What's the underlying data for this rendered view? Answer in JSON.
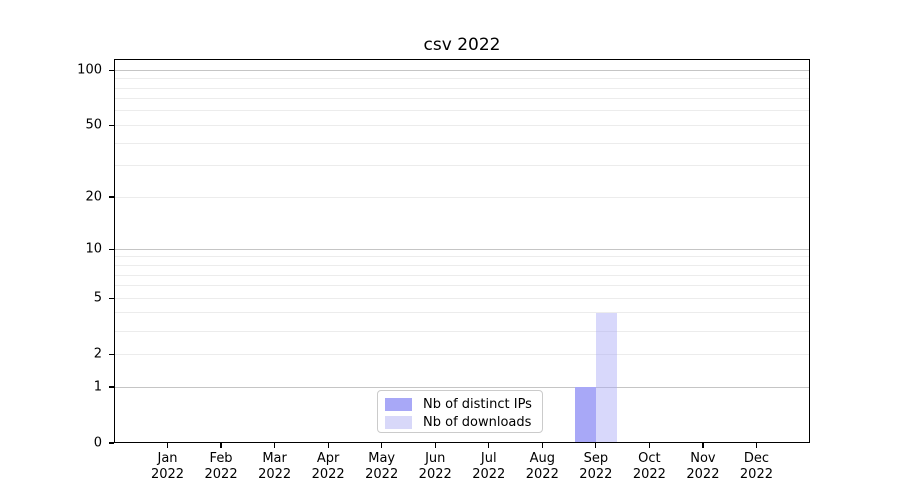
{
  "chart_data": {
    "type": "bar",
    "title": "csv 2022",
    "categories": [
      "Jan 2022",
      "Feb 2022",
      "Mar 2022",
      "Apr 2022",
      "May 2022",
      "Jun 2022",
      "Jul 2022",
      "Aug 2022",
      "Sep 2022",
      "Oct 2022",
      "Nov 2022",
      "Dec 2022"
    ],
    "x_tick_line1": [
      "Jan",
      "Feb",
      "Mar",
      "Apr",
      "May",
      "Jun",
      "Jul",
      "Aug",
      "Sep",
      "Oct",
      "Nov",
      "Dec"
    ],
    "x_tick_line2": [
      "2022",
      "2022",
      "2022",
      "2022",
      "2022",
      "2022",
      "2022",
      "2022",
      "2022",
      "2022",
      "2022",
      "2022"
    ],
    "series": [
      {
        "name": "Nb of distinct IPs",
        "color": "#a8a8f7",
        "alpha": 1,
        "values": [
          0,
          0,
          0,
          0,
          0,
          0,
          0,
          0,
          1,
          0,
          0,
          0
        ]
      },
      {
        "name": "Nb of downloads",
        "color": "#d8d8f9",
        "base_color": "#a8a8f7",
        "alpha": 0.45,
        "values": [
          0,
          0,
          0,
          0,
          0,
          0,
          0,
          0,
          4,
          0,
          0,
          0
        ]
      }
    ],
    "yscale": "log1p",
    "ylim": [
      0,
      115
    ],
    "y_tick_values": [
      0,
      1,
      2,
      5,
      10,
      20,
      50,
      100
    ],
    "y_tick_labels": [
      "0",
      "1",
      "2",
      "5",
      "10",
      "20",
      "50",
      "100"
    ],
    "y_major_gridlines": [
      1,
      10,
      100
    ],
    "y_minor_gridlines": [
      2,
      3,
      4,
      5,
      6,
      7,
      8,
      9,
      20,
      30,
      40,
      50,
      60,
      70,
      80,
      90
    ],
    "grid_on": true,
    "legend_position": "lower center",
    "colors": {
      "background": "#ffffff",
      "spine": "#000000",
      "text": "#000000",
      "grid_major": "#c5c5c5",
      "grid_minor": "#ececec",
      "legend_border": "#cbcbcb"
    }
  }
}
